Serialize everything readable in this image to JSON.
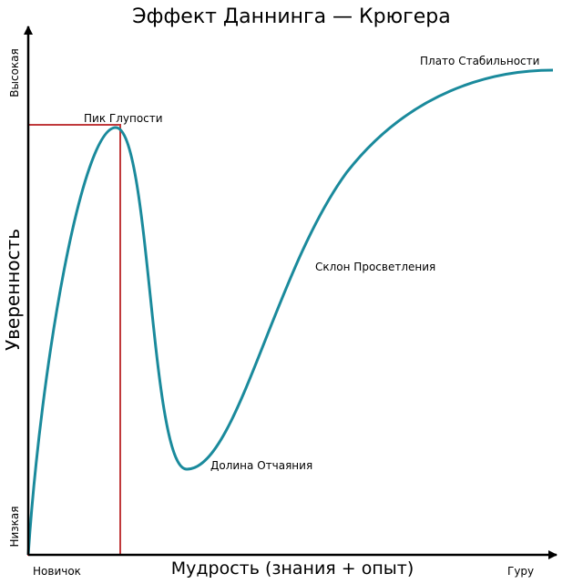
{
  "title": "Эффект Даннинга — Крюгера",
  "y_axis": {
    "label": "Уверенность",
    "high": "Высокая",
    "low": "Низкая"
  },
  "x_axis": {
    "label": "Мудрость (знания + опыт)",
    "start": "Новичок",
    "end": "Гуру"
  },
  "annotations": [
    "Пик Глупости",
    "Долина Отчаяния",
    "Склон Просветления",
    "Плато Стабильности"
  ]
}
